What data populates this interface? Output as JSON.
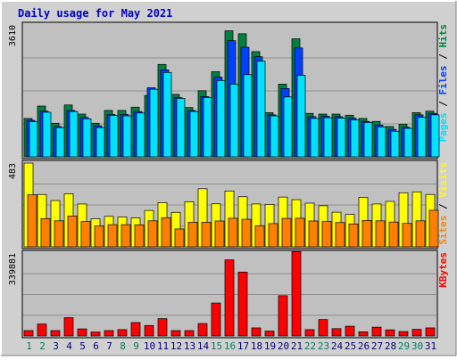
{
  "chart_data": {
    "type": "bar",
    "title": "Daily usage for May 2021",
    "categories": [
      "1",
      "2",
      "3",
      "4",
      "5",
      "6",
      "7",
      "8",
      "9",
      "10",
      "11",
      "12",
      "13",
      "14",
      "15",
      "16",
      "17",
      "18",
      "19",
      "20",
      "21",
      "22",
      "23",
      "24",
      "25",
      "26",
      "27",
      "28",
      "29",
      "30",
      "31"
    ],
    "weekend_days": [
      "1",
      "2",
      "8",
      "9",
      "15",
      "16",
      "22",
      "23",
      "29",
      "30"
    ],
    "colors": {
      "hits": "#008040",
      "files": "#0040ff",
      "pages": "#00e0ff",
      "visits": "#ffff00",
      "sites": "#ff8000",
      "kbytes": "#ff0000",
      "title": "#0000c0",
      "weekday_label": "#000080",
      "weekend_label": "#00805c",
      "panel_bg": "#c0c0c0",
      "frame_bg": "#d0d0d0"
    },
    "panels": [
      {
        "id": "traffic",
        "ymax": 3610,
        "ymax_label": "3610",
        "axis_label": [
          "Pages",
          " / ",
          "Files",
          " / ",
          "Hits"
        ],
        "series": [
          {
            "name": "Hits",
            "values": [
              1050,
              1390,
              920,
              1420,
              1170,
              920,
              1270,
              1270,
              1360,
              1680,
              2530,
              1710,
              1350,
              1810,
              2330,
              3450,
              3370,
              2880,
              1210,
              1990,
              3230,
              1190,
              1170,
              1170,
              1140,
              1050,
              970,
              830,
              890,
              1210,
              1250
            ]
          },
          {
            "name": "Files",
            "values": [
              1000,
              1250,
              830,
              1270,
              1080,
              850,
              1160,
              1160,
              1240,
              1890,
              2380,
              1620,
              1270,
              1650,
              2180,
              3180,
              3000,
              2740,
              1150,
              1870,
              2980,
              1100,
              1110,
              1100,
              1060,
              970,
              870,
              750,
              810,
              1150,
              1190
            ]
          },
          {
            "name": "Pages",
            "values": [
              960,
              1220,
              800,
              1240,
              1040,
              800,
              1130,
              1120,
              1200,
              1850,
              2310,
              1600,
              1240,
              1620,
              2090,
              1990,
              2250,
              2620,
              1120,
              1640,
              2230,
              1050,
              1070,
              1060,
              1010,
              940,
              820,
              700,
              780,
              1080,
              1150
            ]
          }
        ]
      },
      {
        "id": "visits",
        "ymax": 483,
        "ymax_label": "483",
        "axis_label": [
          "Sites",
          " / ",
          "Visits"
        ],
        "series": [
          {
            "name": "Visits",
            "values": [
              483,
              302,
              267,
              306,
              247,
              162,
              176,
              172,
              167,
              210,
              255,
              199,
              260,
              335,
              248,
              322,
              289,
              247,
              245,
              287,
              272,
              252,
              237,
              200,
              187,
              285,
              247,
              262,
              312,
              317,
              302
            ]
          },
          {
            "name": "Sites",
            "values": [
              300,
              163,
              150,
              178,
              146,
              120,
              128,
              128,
              127,
              150,
              168,
              103,
              142,
              142,
              149,
              165,
              159,
              122,
              134,
              164,
              165,
              149,
              146,
              140,
              132,
              152,
              150,
              143,
              135,
              150,
              211
            ]
          }
        ]
      },
      {
        "id": "kbytes",
        "ymax": 339881,
        "ymax_label": "339881",
        "axis_label": [
          "KBytes"
        ],
        "series": [
          {
            "name": "KBytes",
            "values": [
              22000,
              49000,
              22000,
              75000,
              29000,
              16000,
              22000,
              26000,
              55000,
              43000,
              71000,
              22000,
              22000,
              51000,
              135000,
              312000,
              262000,
              33000,
              20000,
              165000,
              346000,
              26000,
              67000,
              30000,
              40000,
              17000,
              36000,
              25000,
              18000,
              27000,
              33000
            ]
          }
        ]
      }
    ]
  }
}
